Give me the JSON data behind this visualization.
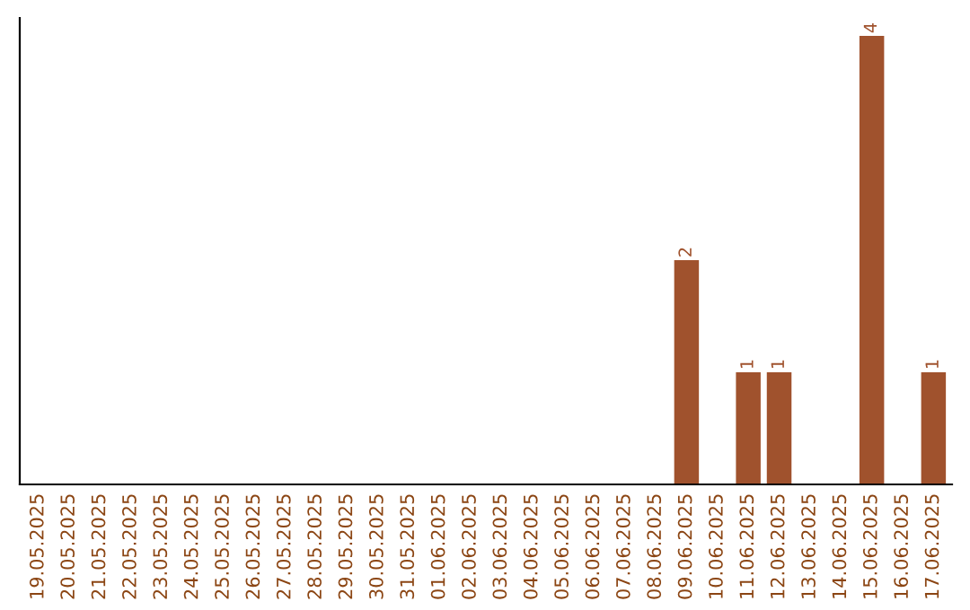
{
  "chart_data": {
    "type": "bar",
    "categories": [
      "19.05.2025",
      "20.05.2025",
      "21.05.2025",
      "22.05.2025",
      "23.05.2025",
      "24.05.2025",
      "25.05.2025",
      "26.05.2025",
      "27.05.2025",
      "28.05.2025",
      "29.05.2025",
      "30.05.2025",
      "31.05.2025",
      "01.06.2025",
      "02.06.2025",
      "03.06.2025",
      "04.06.2025",
      "05.06.2025",
      "06.06.2025",
      "07.06.2025",
      "08.06.2025",
      "09.06.2025",
      "10.06.2025",
      "11.06.2025",
      "12.06.2025",
      "13.06.2025",
      "14.06.2025",
      "15.06.2025",
      "16.06.2025",
      "17.06.2025"
    ],
    "values": [
      null,
      null,
      null,
      null,
      null,
      null,
      null,
      null,
      null,
      null,
      null,
      null,
      null,
      null,
      null,
      null,
      null,
      null,
      null,
      null,
      null,
      2,
      null,
      1,
      1,
      null,
      null,
      4,
      null,
      1
    ],
    "data_labels": true,
    "color": "#a0522d",
    "tick_labels": "x"
  }
}
